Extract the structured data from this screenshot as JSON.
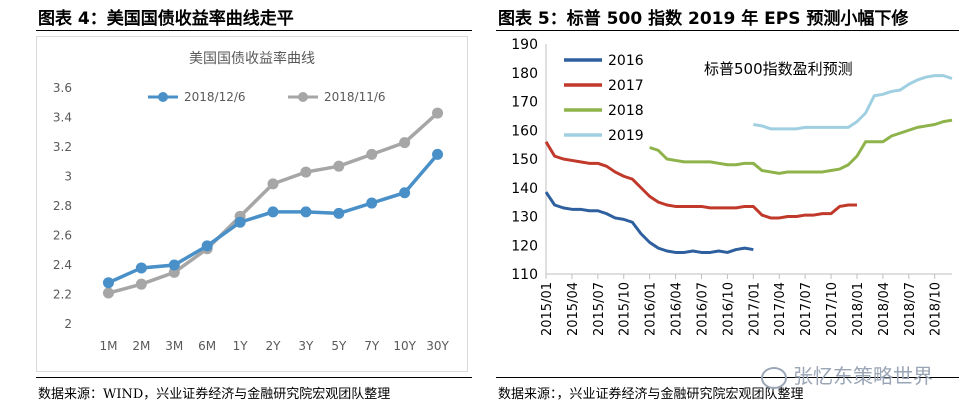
{
  "left": {
    "figure_title": "图表 4：美国国债收益率曲线走平",
    "source": "数据来源：WIND，兴业证券经济与金融研究院宏观团队整理"
  },
  "right": {
    "figure_title": "图表 5：标普 500 指数 2019 年 EPS 预测小幅下修",
    "source": "数据来源：，兴业证券经济与金融研究院宏观团队整理"
  },
  "watermark": "张忆东策略世界",
  "chart_data": [
    {
      "type": "line",
      "title": "美国国债收益率曲线",
      "categories": [
        "1M",
        "2M",
        "3M",
        "6M",
        "1Y",
        "2Y",
        "3Y",
        "5Y",
        "7Y",
        "10Y",
        "30Y"
      ],
      "ylim": [
        2,
        3.6
      ],
      "yticks": [
        "2",
        "2.2",
        "2.4",
        "2.6",
        "2.8",
        "3",
        "3.2",
        "3.4",
        "3.6"
      ],
      "grid": false,
      "legend_position": "top",
      "series": [
        {
          "name": "2018/12/6",
          "color": "#4a90c8",
          "values": [
            2.28,
            2.38,
            2.4,
            2.53,
            2.69,
            2.76,
            2.76,
            2.75,
            2.82,
            2.89,
            3.15
          ]
        },
        {
          "name": "2018/11/6",
          "color": "#a6a6a6",
          "values": [
            2.21,
            2.27,
            2.35,
            2.51,
            2.73,
            2.95,
            3.03,
            3.07,
            3.15,
            3.23,
            3.43
          ]
        }
      ]
    },
    {
      "type": "line",
      "title": "标普500指数盈利预测",
      "ylim": [
        110,
        190
      ],
      "yticks": [
        "110",
        "120",
        "130",
        "140",
        "150",
        "160",
        "170",
        "180",
        "190"
      ],
      "xticks": [
        "2015/01",
        "2015/04",
        "2015/07",
        "2015/10",
        "2016/01",
        "2016/04",
        "2016/07",
        "2016/10",
        "2017/01",
        "2017/04",
        "2017/07",
        "2017/10",
        "2018/01",
        "2018/04",
        "2018/07",
        "2018/10"
      ],
      "grid": false,
      "legend_position": "top-left",
      "series": [
        {
          "name": "2016",
          "color": "#2e5f9e",
          "x": [
            "2015/01",
            "2015/02",
            "2015/03",
            "2015/04",
            "2015/05",
            "2015/06",
            "2015/07",
            "2015/08",
            "2015/09",
            "2015/10",
            "2015/11",
            "2015/12",
            "2016/01",
            "2016/02",
            "2016/03",
            "2016/04",
            "2016/05",
            "2016/06",
            "2016/07",
            "2016/08",
            "2016/09",
            "2016/10",
            "2016/11",
            "2016/12",
            "2017/01"
          ],
          "values": [
            138.5,
            134,
            133,
            132.5,
            132.5,
            132,
            132,
            131,
            129.5,
            129,
            128,
            124,
            121,
            119,
            118,
            117.5,
            117.5,
            118,
            117.5,
            117.5,
            118,
            117.5,
            118.5,
            119,
            118.5
          ]
        },
        {
          "name": "2017",
          "color": "#c0392b",
          "x": [
            "2015/01",
            "2015/02",
            "2015/03",
            "2015/04",
            "2015/05",
            "2015/06",
            "2015/07",
            "2015/08",
            "2015/09",
            "2015/10",
            "2015/11",
            "2015/12",
            "2016/01",
            "2016/02",
            "2016/03",
            "2016/04",
            "2016/05",
            "2016/06",
            "2016/07",
            "2016/08",
            "2016/09",
            "2016/10",
            "2016/11",
            "2016/12",
            "2017/01",
            "2017/02",
            "2017/03",
            "2017/04",
            "2017/05",
            "2017/06",
            "2017/07",
            "2017/08",
            "2017/09",
            "2017/10",
            "2017/11",
            "2017/12",
            "2018/01"
          ],
          "values": [
            156,
            151,
            150,
            149.5,
            149,
            148.5,
            148.5,
            147.5,
            145.5,
            144,
            143,
            140,
            137,
            135,
            134,
            133.5,
            133.5,
            133.5,
            133.5,
            133,
            133,
            133,
            133,
            133.5,
            133.5,
            130.5,
            129.5,
            129.5,
            130,
            130,
            130.5,
            130.5,
            131,
            131,
            133.5,
            134,
            134
          ]
        },
        {
          "name": "2018",
          "color": "#8db34a",
          "x": [
            "2016/01",
            "2016/02",
            "2016/03",
            "2016/04",
            "2016/05",
            "2016/06",
            "2016/07",
            "2016/08",
            "2016/09",
            "2016/10",
            "2016/11",
            "2016/12",
            "2017/01",
            "2017/02",
            "2017/03",
            "2017/04",
            "2017/05",
            "2017/06",
            "2017/07",
            "2017/08",
            "2017/09",
            "2017/10",
            "2017/11",
            "2017/12",
            "2018/01",
            "2018/02",
            "2018/03",
            "2018/04",
            "2018/05",
            "2018/06",
            "2018/07",
            "2018/08",
            "2018/09",
            "2018/10",
            "2018/11",
            "2018/12"
          ],
          "values": [
            154,
            153,
            150,
            149.5,
            149,
            149,
            149,
            149,
            148.5,
            148,
            148,
            148.5,
            148.5,
            146,
            145.5,
            145,
            145.5,
            145.5,
            145.5,
            145.5,
            145.5,
            146,
            146.5,
            148,
            151,
            156,
            156,
            156,
            158,
            159,
            160,
            161,
            161.5,
            162,
            163,
            163.5
          ]
        },
        {
          "name": "2019",
          "color": "#9fcfe0",
          "x": [
            "2017/01",
            "2017/02",
            "2017/03",
            "2017/04",
            "2017/05",
            "2017/06",
            "2017/07",
            "2017/08",
            "2017/09",
            "2017/10",
            "2017/11",
            "2017/12",
            "2018/01",
            "2018/02",
            "2018/03",
            "2018/04",
            "2018/05",
            "2018/06",
            "2018/07",
            "2018/08",
            "2018/09",
            "2018/10",
            "2018/11",
            "2018/12"
          ],
          "values": [
            162,
            161.5,
            160.5,
            160.5,
            160.5,
            160.5,
            161,
            161,
            161,
            161,
            161,
            161,
            163,
            166,
            172,
            172.5,
            173.5,
            174,
            176,
            177.5,
            178.5,
            179,
            179,
            178
          ]
        }
      ]
    }
  ]
}
